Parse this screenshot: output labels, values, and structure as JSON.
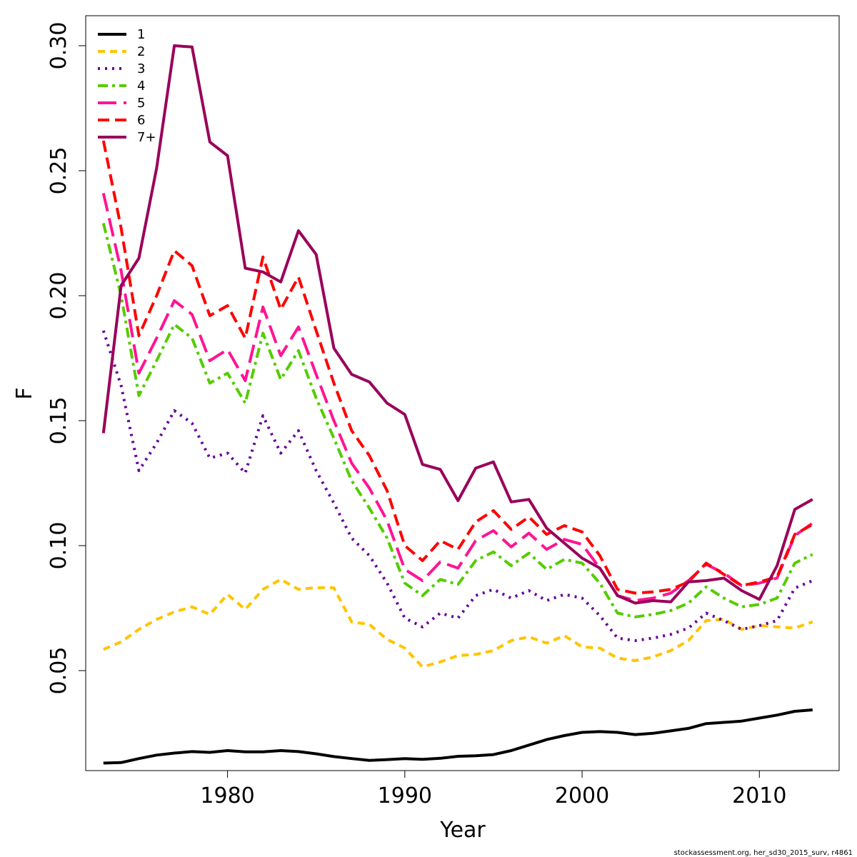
{
  "chart_data": {
    "type": "line",
    "title": "",
    "xlabel": "Year",
    "ylabel": "F",
    "xlim": [
      1972,
      2014.5
    ],
    "ylim": [
      0.01,
      0.312
    ],
    "x_ticks": [
      1980,
      1990,
      2000,
      2010
    ],
    "x_tick_labels": [
      "1980",
      "1990",
      "2000",
      "2010"
    ],
    "y_ticks": [
      0.05,
      0.1,
      0.15,
      0.2,
      0.25,
      0.3
    ],
    "y_tick_labels": [
      "0.05",
      "0.10",
      "0.15",
      "0.20",
      "0.25",
      "0.30"
    ],
    "grid": false,
    "legend_position": "top-left",
    "x": [
      1973,
      1974,
      1975,
      1976,
      1977,
      1978,
      1979,
      1980,
      1981,
      1982,
      1983,
      1984,
      1985,
      1986,
      1987,
      1988,
      1989,
      1990,
      1991,
      1992,
      1993,
      1994,
      1995,
      1996,
      1997,
      1998,
      1999,
      2000,
      2001,
      2002,
      2003,
      2004,
      2005,
      2006,
      2007,
      2008,
      2009,
      2010,
      2011,
      2012,
      2013
    ],
    "series": [
      {
        "name": "1",
        "color": "#000000",
        "dash": "solid",
        "values": [
          0.013,
          0.0132,
          0.0148,
          0.0162,
          0.017,
          0.0176,
          0.0173,
          0.018,
          0.0175,
          0.0175,
          0.018,
          0.0176,
          0.0167,
          0.0156,
          0.0148,
          0.0141,
          0.0144,
          0.0148,
          0.0145,
          0.0149,
          0.0157,
          0.0159,
          0.0164,
          0.018,
          0.0202,
          0.0224,
          0.024,
          0.0253,
          0.0256,
          0.0253,
          0.0244,
          0.0249,
          0.0259,
          0.0269,
          0.0288,
          0.0293,
          0.0298,
          0.031,
          0.0322,
          0.0337,
          0.0343
        ]
      },
      {
        "name": "2",
        "color": "#ffc400",
        "dash": "10,7",
        "values": [
          0.0585,
          0.0615,
          0.0665,
          0.0705,
          0.0735,
          0.0755,
          0.0725,
          0.0805,
          0.0745,
          0.0825,
          0.0865,
          0.0825,
          0.0832,
          0.0831,
          0.0695,
          0.0685,
          0.0625,
          0.059,
          0.0515,
          0.0535,
          0.056,
          0.0565,
          0.058,
          0.062,
          0.0635,
          0.061,
          0.064,
          0.0595,
          0.059,
          0.055,
          0.054,
          0.0555,
          0.058,
          0.062,
          0.07,
          0.0705,
          0.0665,
          0.068,
          0.0675,
          0.067,
          0.0695
        ]
      },
      {
        "name": "3",
        "color": "#660099",
        "dash": "3,7",
        "values": [
          0.186,
          0.164,
          0.13,
          0.141,
          0.154,
          0.149,
          0.135,
          0.137,
          0.129,
          0.152,
          0.137,
          0.146,
          0.13,
          0.117,
          0.103,
          0.096,
          0.085,
          0.071,
          0.0675,
          0.073,
          0.071,
          0.08,
          0.0825,
          0.079,
          0.082,
          0.078,
          0.0805,
          0.079,
          0.072,
          0.063,
          0.062,
          0.063,
          0.0645,
          0.067,
          0.073,
          0.07,
          0.0665,
          0.068,
          0.07,
          0.083,
          0.086
        ]
      },
      {
        "name": "4",
        "color": "#55cc00",
        "dash": "14,6,4,6",
        "values": [
          0.229,
          0.2,
          0.16,
          0.174,
          0.1885,
          0.183,
          0.165,
          0.169,
          0.157,
          0.185,
          0.1665,
          0.178,
          0.159,
          0.143,
          0.126,
          0.115,
          0.103,
          0.085,
          0.08,
          0.0865,
          0.0845,
          0.094,
          0.0975,
          0.092,
          0.097,
          0.0905,
          0.0945,
          0.093,
          0.085,
          0.073,
          0.0715,
          0.0725,
          0.074,
          0.077,
          0.0835,
          0.079,
          0.0755,
          0.0765,
          0.079,
          0.093,
          0.0965
        ]
      },
      {
        "name": "5",
        "color": "#ff1493",
        "dash": "26,10",
        "values": [
          0.241,
          0.21,
          0.169,
          0.183,
          0.198,
          0.1925,
          0.174,
          0.1785,
          0.166,
          0.1955,
          0.176,
          0.1875,
          0.1685,
          0.15,
          0.133,
          0.123,
          0.11,
          0.0905,
          0.086,
          0.0935,
          0.091,
          0.102,
          0.106,
          0.0995,
          0.105,
          0.0985,
          0.1025,
          0.1005,
          0.091,
          0.08,
          0.078,
          0.079,
          0.081,
          0.086,
          0.0925,
          0.089,
          0.084,
          0.085,
          0.087,
          0.104,
          0.109
        ]
      },
      {
        "name": "6",
        "color": "#ff0000",
        "dash": "16,8",
        "values": [
          0.262,
          0.227,
          0.184,
          0.2,
          0.218,
          0.212,
          0.192,
          0.196,
          0.183,
          0.2155,
          0.1945,
          0.2075,
          0.186,
          0.165,
          0.146,
          0.136,
          0.122,
          0.1,
          0.094,
          0.102,
          0.0985,
          0.1095,
          0.114,
          0.1065,
          0.1115,
          0.1045,
          0.108,
          0.1055,
          0.096,
          0.0825,
          0.081,
          0.0815,
          0.0825,
          0.0855,
          0.093,
          0.0885,
          0.084,
          0.0855,
          0.0875,
          0.1045,
          0.1085
        ]
      },
      {
        "name": "7+",
        "color": "#99005a",
        "dash": "solid",
        "values": [
          0.145,
          0.204,
          0.215,
          0.251,
          0.3,
          0.2995,
          0.2615,
          0.256,
          0.211,
          0.2095,
          0.2055,
          0.226,
          0.2165,
          0.179,
          0.1685,
          0.1655,
          0.157,
          0.1525,
          0.1325,
          0.1305,
          0.118,
          0.131,
          0.1335,
          0.1175,
          0.1185,
          0.107,
          0.101,
          0.095,
          0.091,
          0.08,
          0.077,
          0.078,
          0.0775,
          0.0855,
          0.086,
          0.087,
          0.082,
          0.0785,
          0.092,
          0.1145,
          0.1185
        ]
      }
    ]
  },
  "footer": "stockassessment.org, her_sd30_2015_surv, r4861"
}
